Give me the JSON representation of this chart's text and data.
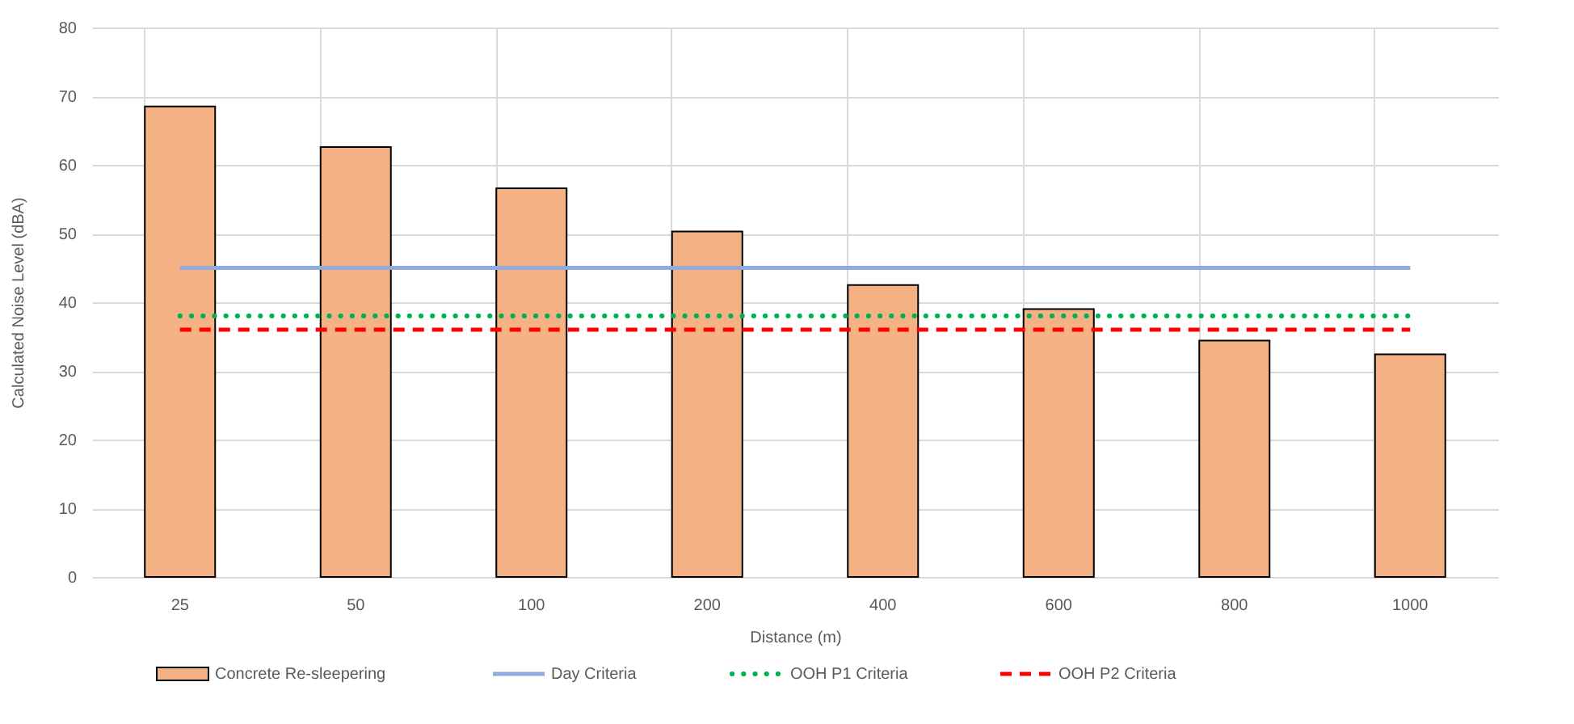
{
  "chart_data": {
    "type": "bar",
    "xlabel": "Distance (m)",
    "ylabel": "Calculated Noise Level (dBA)",
    "categories": [
      "25",
      "50",
      "100",
      "200",
      "400",
      "600",
      "800",
      "1000"
    ],
    "series": [
      {
        "name": "Concrete Re-sleepering",
        "color": "#f4b183",
        "values": [
          68.5,
          62.6,
          56.6,
          50.3,
          42.5,
          39.0,
          34.4,
          32.4
        ]
      },
      {
        "name": "Day Criteria",
        "type": "line",
        "line_style": "solid",
        "color": "#8faadc",
        "values": [
          45,
          45,
          45,
          45,
          45,
          45,
          45,
          45
        ]
      },
      {
        "name": "OOH P1 Criteria",
        "type": "line",
        "line_style": "dotted",
        "color": "#00b050",
        "values": [
          38,
          38,
          38,
          38,
          38,
          38,
          38,
          38
        ]
      },
      {
        "name": "OOH P2 Criteria",
        "type": "line",
        "line_style": "dashed",
        "color": "#ff0000",
        "values": [
          36,
          36,
          36,
          36,
          36,
          36,
          36,
          36
        ]
      }
    ],
    "ylim": [
      0,
      80
    ],
    "yticks": [
      0,
      10,
      20,
      30,
      40,
      50,
      60,
      70,
      80
    ],
    "grid": true,
    "legend": "bottom",
    "marker": "none"
  }
}
